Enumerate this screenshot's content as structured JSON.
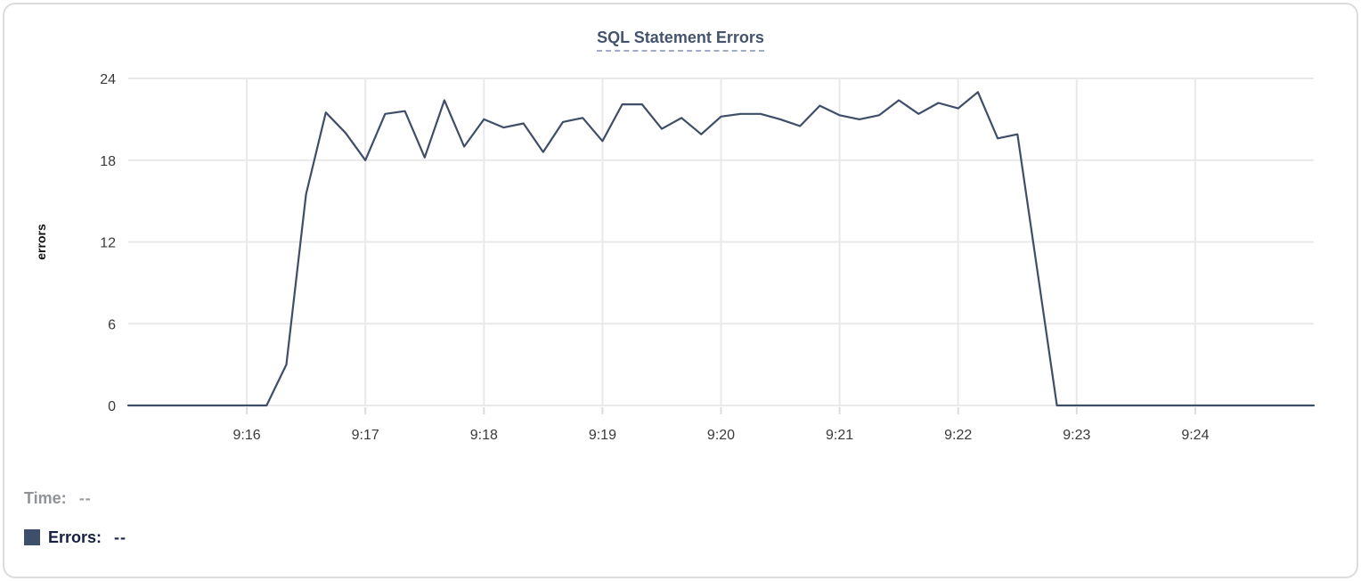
{
  "card": {
    "title": "SQL Statement Errors"
  },
  "tooltip": {
    "time_label": "Time:",
    "time_value": "--",
    "errors_label": "Errors:",
    "errors_value": "--"
  },
  "colors": {
    "series_line": "#3f4e68",
    "legend_swatch": "#3e4f6b",
    "title_text": "#44546e",
    "title_underline": "#9fadc4",
    "grid_line": "#e9e9e9",
    "axis_tick_mark": "#dcdcdc",
    "tick_label_text": "#3a3a3a",
    "axis_title_text": "#111111"
  },
  "chart_data": {
    "type": "line",
    "title": "SQL Statement Errors",
    "xlabel": "",
    "ylabel": "errors",
    "y_ticks": [
      0,
      6,
      12,
      18,
      24
    ],
    "ylim": [
      0,
      24
    ],
    "grid": true,
    "legend_position": "bottom-left",
    "x_window": [
      "9:15:00",
      "9:25:00"
    ],
    "x_tick_labels": [
      "9:16",
      "9:17",
      "9:18",
      "9:19",
      "9:20",
      "9:21",
      "9:22",
      "9:23",
      "9:24"
    ],
    "x_tick_seconds": [
      60,
      120,
      180,
      240,
      300,
      360,
      420,
      480,
      540
    ],
    "start_time": "9:15:00",
    "interval_seconds": 10,
    "series": [
      {
        "name": "Errors",
        "color": "#3f4e68",
        "values": [
          0,
          0,
          0,
          0,
          0,
          0,
          0,
          0,
          3,
          15.5,
          21.5,
          20,
          18,
          21.4,
          21.6,
          18.2,
          22.4,
          19,
          21,
          20.4,
          20.7,
          18.6,
          20.8,
          21.1,
          19.4,
          22.1,
          22.1,
          20.3,
          21.1,
          19.9,
          21.2,
          21.4,
          21.4,
          21,
          20.5,
          22,
          21.3,
          21,
          21.3,
          22.4,
          21.4,
          22.2,
          21.8,
          23,
          19.6,
          19.9,
          10,
          0,
          0,
          0,
          0,
          0,
          0,
          0,
          0,
          0,
          0,
          0,
          0,
          0,
          0
        ]
      }
    ]
  }
}
